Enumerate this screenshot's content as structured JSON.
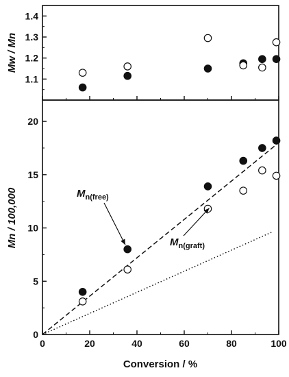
{
  "chart_data": [
    {
      "id": "mw-mn-panel",
      "type": "scatter",
      "ylabel": "Mw / Mn",
      "xlim": [
        0,
        100
      ],
      "ylim": [
        1.0,
        1.45
      ],
      "yticks": [
        1.1,
        1.2,
        1.3,
        1.4
      ],
      "ytick_labels": [
        "1.1",
        "1.2",
        "1.3",
        "1.4"
      ],
      "x_tick_labels_shown": false,
      "grid": false,
      "series": [
        {
          "marker": "filled-circle",
          "x": [
            17,
            36,
            70,
            85,
            93,
            99
          ],
          "y": [
            1.06,
            1.115,
            1.15,
            1.175,
            1.195,
            1.195
          ]
        },
        {
          "marker": "open-circle",
          "x": [
            17,
            36,
            70,
            85,
            93,
            99
          ],
          "y": [
            1.13,
            1.16,
            1.295,
            1.165,
            1.155,
            1.275
          ]
        }
      ]
    },
    {
      "id": "mn-panel",
      "type": "scatter",
      "ylabel": "Mn / 100,000",
      "xlabel": "Conversion / %",
      "xlim": [
        0,
        100
      ],
      "ylim": [
        0,
        22
      ],
      "xticks": [
        0,
        20,
        40,
        60,
        80,
        100
      ],
      "xtick_labels": [
        "0",
        "20",
        "40",
        "60",
        "80",
        "100"
      ],
      "yticks": [
        0,
        5,
        10,
        15,
        20
      ],
      "ytick_labels": [
        "0",
        "5",
        "10",
        "15",
        "20"
      ],
      "grid": false,
      "series": [
        {
          "marker": "filled-circle",
          "x": [
            17,
            36,
            70,
            85,
            93,
            99
          ],
          "y": [
            4.0,
            8.0,
            13.9,
            16.3,
            17.5,
            18.2
          ]
        },
        {
          "marker": "open-circle",
          "x": [
            17,
            36,
            70,
            85,
            93,
            99
          ],
          "y": [
            3.1,
            6.1,
            11.8,
            13.5,
            15.4,
            14.9
          ]
        }
      ],
      "lines": [
        {
          "style": "dashed",
          "x": [
            0,
            100
          ],
          "y": [
            0,
            18.0
          ]
        },
        {
          "style": "dotted",
          "x": [
            0,
            97
          ],
          "y": [
            0,
            9.6
          ]
        }
      ],
      "annotations": [
        {
          "main": "M",
          "sub": "n(free)",
          "arrow_to": {
            "x": 36,
            "y": 8.0
          }
        },
        {
          "main": "M",
          "sub": "n(graft)",
          "arrow_to": {
            "x": 72,
            "y": 12.2
          }
        }
      ]
    }
  ]
}
